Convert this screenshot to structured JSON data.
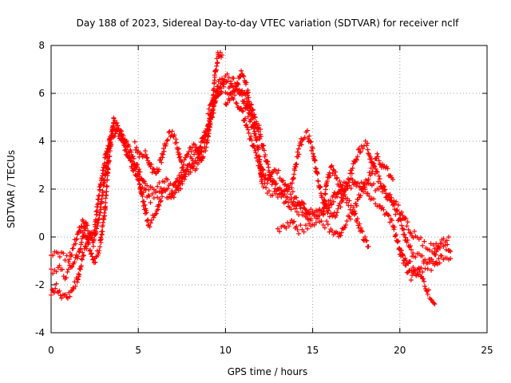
{
  "chart_data": {
    "type": "scatter",
    "title": "Day 188 of 2023, Sidereal Day-to-day VTEC variation (SDTVAR) for receiver nclf",
    "xlabel": "GPS time / hours",
    "ylabel": "SDTVAR / TECUs",
    "xlim": [
      0,
      25
    ],
    "ylim": [
      -4,
      8
    ],
    "xticks": [
      0,
      5,
      10,
      15,
      20,
      25
    ],
    "yticks": [
      -4,
      -2,
      0,
      2,
      4,
      6,
      8
    ],
    "grid": true,
    "marker": "+",
    "series": [
      {
        "name": "SDTVAR",
        "color": "#ff0000",
        "tracks": [
          [
            [
              0.0,
              -0.8
            ],
            [
              0.5,
              -0.7
            ],
            [
              1.0,
              -0.9
            ],
            [
              1.4,
              -0.2
            ],
            [
              1.8,
              0.6
            ],
            [
              2.1,
              -0.1
            ],
            [
              2.5,
              0.4
            ],
            [
              2.8,
              2.1
            ],
            [
              3.2,
              3.7
            ],
            [
              3.6,
              4.6
            ],
            [
              4.0,
              4.2
            ],
            [
              4.3,
              3.6
            ],
            [
              4.7,
              3.2
            ],
            [
              5.0,
              2.8
            ],
            [
              5.4,
              2.2
            ],
            [
              5.8,
              2.0
            ],
            [
              6.2,
              2.1
            ],
            [
              6.6,
              2.3
            ],
            [
              7.0,
              2.0
            ],
            [
              7.4,
              2.5
            ],
            [
              7.8,
              3.0
            ],
            [
              8.2,
              3.4
            ],
            [
              8.6,
              3.9
            ],
            [
              9.0,
              4.6
            ],
            [
              9.3,
              5.5
            ],
            [
              9.6,
              6.4
            ],
            [
              10.0,
              6.8
            ],
            [
              10.4,
              6.6
            ],
            [
              10.8,
              6.2
            ],
            [
              11.2,
              5.4
            ],
            [
              11.6,
              4.5
            ],
            [
              11.9,
              3.6
            ],
            [
              12.1,
              2.2
            ],
            [
              12.4,
              2.0
            ],
            [
              12.8,
              1.8
            ],
            [
              13.2,
              1.7
            ],
            [
              13.6,
              1.4
            ],
            [
              14.0,
              1.1
            ],
            [
              14.4,
              1.0
            ],
            [
              14.8,
              0.9
            ],
            [
              15.2,
              1.0
            ],
            [
              15.6,
              1.2
            ],
            [
              16.0,
              1.4
            ],
            [
              16.4,
              1.6
            ],
            [
              16.8,
              1.9
            ],
            [
              17.2,
              2.1
            ],
            [
              17.6,
              2.2
            ],
            [
              18.0,
              2.3
            ],
            [
              18.4,
              2.2
            ],
            [
              18.8,
              2.0
            ],
            [
              19.2,
              1.8
            ],
            [
              19.6,
              1.3
            ],
            [
              20.0,
              0.7
            ],
            [
              20.4,
              -0.2
            ],
            [
              20.8,
              -0.8
            ],
            [
              21.2,
              -0.9
            ],
            [
              21.6,
              -1.2
            ],
            [
              22.0,
              -1.3
            ],
            [
              22.4,
              -0.8
            ],
            [
              22.9,
              -0.9
            ]
          ],
          [
            [
              0.0,
              -1.5
            ],
            [
              0.4,
              -1.3
            ],
            [
              0.8,
              -1.6
            ],
            [
              1.2,
              -1.2
            ],
            [
              1.6,
              -0.6
            ],
            [
              2.0,
              0.5
            ],
            [
              2.4,
              -0.3
            ],
            [
              2.8,
              1.0
            ],
            [
              3.1,
              2.6
            ],
            [
              3.4,
              4.1
            ],
            [
              3.8,
              4.6
            ],
            [
              4.2,
              4.1
            ],
            [
              4.6,
              3.4
            ],
            [
              5.0,
              2.6
            ],
            [
              5.3,
              1.4
            ],
            [
              5.6,
              0.5
            ],
            [
              6.0,
              1.0
            ],
            [
              6.4,
              1.9
            ],
            [
              6.8,
              1.6
            ],
            [
              7.2,
              1.9
            ],
            [
              7.6,
              2.4
            ],
            [
              8.0,
              2.9
            ],
            [
              8.4,
              3.3
            ],
            [
              8.8,
              4.1
            ],
            [
              9.2,
              5.0
            ],
            [
              9.5,
              5.8
            ],
            [
              9.8,
              6.3
            ],
            [
              10.2,
              6.1
            ],
            [
              10.6,
              5.7
            ],
            [
              11.0,
              5.1
            ],
            [
              11.3,
              4.4
            ],
            [
              11.5,
              4.0
            ],
            [
              11.8,
              3.3
            ],
            [
              12.3,
              2.4
            ],
            [
              12.7,
              2.3
            ],
            [
              13.2,
              1.9
            ],
            [
              13.6,
              1.5
            ],
            [
              14.0,
              1.3
            ],
            [
              14.3,
              1.5
            ],
            [
              14.8,
              1.1
            ],
            [
              15.2,
              1.0
            ],
            [
              15.6,
              1.1
            ],
            [
              15.9,
              1.3
            ],
            [
              16.3,
              1.8
            ],
            [
              16.8,
              2.2
            ],
            [
              17.2,
              2.4
            ],
            [
              17.6,
              2.1
            ],
            [
              18.0,
              1.9
            ],
            [
              18.4,
              1.6
            ],
            [
              18.8,
              1.4
            ],
            [
              19.2,
              1.0
            ],
            [
              19.6,
              0.5
            ],
            [
              20.0,
              -0.5
            ],
            [
              20.3,
              -1.2
            ],
            [
              20.7,
              -1.7
            ],
            [
              21.0,
              -1.4
            ],
            [
              21.3,
              -1.8
            ],
            [
              21.6,
              -2.3
            ],
            [
              22.0,
              -2.8
            ]
          ],
          [
            [
              0.0,
              -2.4
            ],
            [
              0.3,
              -2.1
            ],
            [
              0.6,
              -2.4
            ],
            [
              0.9,
              -2.5
            ],
            [
              1.2,
              -2.2
            ],
            [
              1.5,
              -1.8
            ],
            [
              1.8,
              -0.8
            ],
            [
              2.1,
              -0.2
            ],
            [
              2.5,
              -1.0
            ],
            [
              2.8,
              -0.4
            ],
            [
              3.1,
              1.2
            ],
            [
              3.3,
              3.2
            ],
            [
              3.6,
              4.9
            ],
            [
              4.0,
              4.4
            ],
            [
              4.5,
              3.3
            ],
            [
              4.9,
              2.5
            ],
            [
              5.3,
              2.0
            ],
            [
              5.7,
              1.6
            ],
            [
              6.1,
              1.8
            ],
            [
              6.5,
              2.0
            ],
            [
              6.9,
              1.8
            ],
            [
              7.3,
              2.1
            ],
            [
              7.7,
              2.6
            ],
            [
              8.1,
              2.8
            ],
            [
              8.5,
              3.1
            ],
            [
              8.9,
              3.8
            ],
            [
              9.2,
              5.2
            ],
            [
              9.4,
              6.8
            ],
            [
              9.6,
              7.7
            ],
            [
              9.8,
              7.6
            ]
          ],
          [
            [
              10.0,
              5.6
            ],
            [
              10.3,
              5.9
            ],
            [
              10.6,
              6.2
            ],
            [
              10.9,
              6.9
            ],
            [
              11.1,
              6.6
            ],
            [
              11.4,
              5.6
            ],
            [
              11.8,
              4.6
            ],
            [
              12.1,
              3.9
            ],
            [
              12.4,
              3.1
            ],
            [
              12.6,
              2.4
            ],
            [
              13.0,
              2.0
            ],
            [
              13.4,
              1.9
            ],
            [
              13.8,
              2.2
            ],
            [
              14.1,
              3.3
            ],
            [
              14.4,
              4.1
            ],
            [
              14.7,
              4.3
            ],
            [
              15.0,
              3.6
            ],
            [
              15.3,
              2.4
            ],
            [
              15.6,
              1.5
            ],
            [
              15.9,
              1.0
            ],
            [
              16.2,
              0.8
            ],
            [
              16.6,
              1.4
            ],
            [
              17.0,
              2.3
            ],
            [
              17.4,
              3.1
            ],
            [
              17.8,
              3.8
            ],
            [
              18.1,
              3.9
            ],
            [
              18.4,
              3.1
            ],
            [
              18.8,
              2.4
            ],
            [
              19.2,
              1.8
            ],
            [
              19.6,
              1.5
            ],
            [
              20.1,
              1.0
            ],
            [
              20.5,
              0.4
            ],
            [
              20.9,
              0.0
            ],
            [
              21.3,
              -0.2
            ],
            [
              21.7,
              -0.4
            ],
            [
              22.0,
              -0.5
            ],
            [
              22.4,
              -0.2
            ],
            [
              22.8,
              0.0
            ]
          ],
          [
            [
              13.0,
              0.2
            ],
            [
              13.4,
              0.4
            ],
            [
              13.8,
              0.7
            ],
            [
              14.2,
              0.3
            ],
            [
              14.6,
              0.4
            ],
            [
              15.0,
              0.6
            ],
            [
              15.4,
              0.7
            ],
            [
              15.8,
              0.5
            ],
            [
              16.2,
              0.2
            ],
            [
              16.5,
              0.0
            ],
            [
              16.9,
              0.6
            ],
            [
              17.3,
              1.0
            ],
            [
              17.6,
              1.6
            ],
            [
              18.0,
              2.2
            ],
            [
              18.4,
              2.8
            ],
            [
              18.7,
              3.4
            ],
            [
              19.0,
              3.0
            ],
            [
              19.3,
              2.7
            ],
            [
              19.6,
              2.4
            ]
          ],
          [
            [
              12.0,
              2.6
            ],
            [
              12.4,
              2.4
            ],
            [
              12.8,
              2.8
            ],
            [
              13.2,
              2.5
            ],
            [
              13.6,
              2.0
            ],
            [
              14.0,
              1.6
            ],
            [
              14.4,
              1.2
            ],
            [
              14.8,
              0.8
            ],
            [
              15.2,
              0.9
            ],
            [
              15.6,
              1.0
            ],
            [
              15.8,
              2.2
            ],
            [
              16.1,
              2.9
            ],
            [
              16.4,
              2.4
            ],
            [
              16.8,
              1.8
            ],
            [
              17.2,
              1.2
            ],
            [
              17.5,
              0.8
            ],
            [
              17.8,
              0.2
            ],
            [
              18.2,
              -0.4
            ]
          ],
          [
            [
              9.0,
              5.2
            ],
            [
              9.3,
              5.6
            ],
            [
              9.6,
              6.0
            ],
            [
              9.9,
              6.3
            ],
            [
              10.2,
              6.4
            ],
            [
              10.5,
              6.1
            ],
            [
              10.8,
              6.0
            ],
            [
              11.1,
              5.9
            ],
            [
              11.4,
              5.3
            ],
            [
              11.7,
              4.7
            ],
            [
              12.0,
              4.5
            ]
          ],
          [
            [
              4.8,
              3.8
            ],
            [
              5.1,
              3.4
            ],
            [
              5.4,
              3.6
            ],
            [
              5.7,
              3.0
            ],
            [
              6.0,
              2.6
            ],
            [
              6.3,
              3.2
            ],
            [
              6.6,
              4.0
            ],
            [
              6.9,
              4.4
            ],
            [
              7.2,
              3.9
            ],
            [
              7.5,
              3.0
            ],
            [
              7.8,
              3.4
            ],
            [
              8.1,
              3.8
            ],
            [
              8.4,
              3.6
            ],
            [
              8.7,
              3.3
            ]
          ],
          [
            [
              20.0,
              -0.6
            ],
            [
              20.3,
              -0.9
            ],
            [
              20.6,
              -1.2
            ],
            [
              21.0,
              -1.5
            ],
            [
              21.3,
              -1.3
            ],
            [
              21.6,
              -1.1
            ],
            [
              21.9,
              -0.9
            ],
            [
              22.2,
              -0.5
            ],
            [
              22.6,
              -0.3
            ],
            [
              22.9,
              -0.6
            ]
          ]
        ]
      }
    ]
  }
}
